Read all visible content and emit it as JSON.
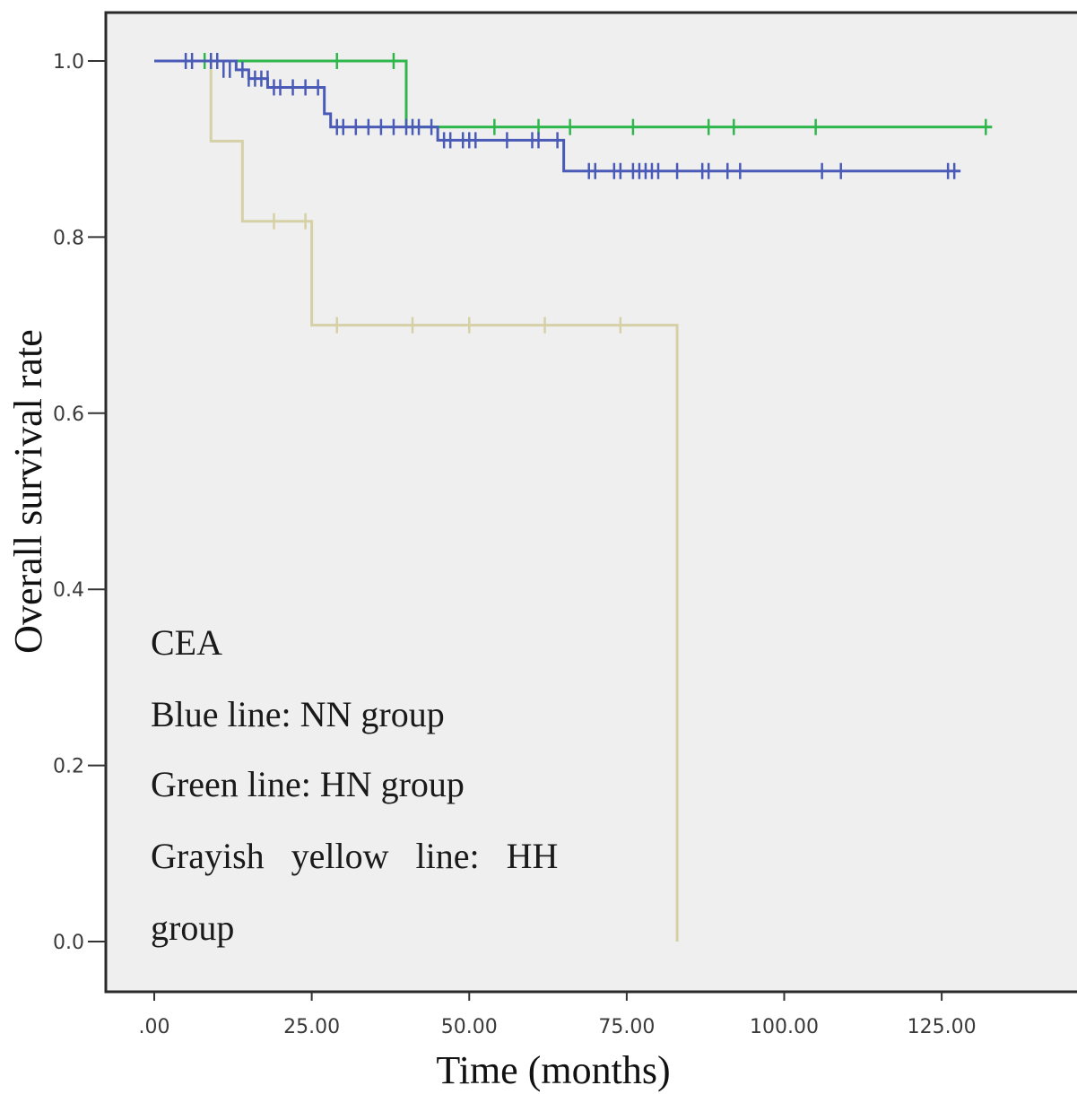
{
  "chart_data": {
    "type": "line",
    "subtype": "kaplan-meier step",
    "xlabel": "Time (months)",
    "ylabel": "Overall survival rate",
    "xlim": [
      0,
      132
    ],
    "ylim": [
      0,
      1.0
    ],
    "x_ticks": [
      ".00",
      "25.00",
      "50.00",
      "75.00",
      "100.00",
      "125.00"
    ],
    "y_ticks": [
      "0.0",
      "0.2",
      "0.4",
      "0.6",
      "0.8",
      "1.0"
    ],
    "grid": false,
    "colors": {
      "plot_background": "#efefef",
      "blue": "#4a5bb7",
      "green": "#2fb64d",
      "yellow": "#d6d0a6"
    },
    "annotations": [
      "CEA",
      "Blue line: NN group",
      "Green line: HN group",
      "Grayish   yellow   line:   HH",
      "group"
    ],
    "series": [
      {
        "color_key": "blue",
        "steps": [
          [
            0,
            1.0
          ],
          [
            13,
            0.99
          ],
          [
            15,
            0.98
          ],
          [
            18,
            0.97
          ],
          [
            27,
            0.94
          ],
          [
            28,
            0.925
          ],
          [
            45,
            0.91
          ],
          [
            65,
            0.875
          ],
          [
            128,
            0.875
          ]
        ],
        "censored": [
          [
            5,
            1.0
          ],
          [
            6,
            1.0
          ],
          [
            9,
            1.0
          ],
          [
            10,
            1.0
          ],
          [
            11,
            0.99
          ],
          [
            12,
            0.99
          ],
          [
            14,
            0.99
          ],
          [
            15,
            0.98
          ],
          [
            16,
            0.98
          ],
          [
            17,
            0.98
          ],
          [
            18,
            0.98
          ],
          [
            19,
            0.97
          ],
          [
            20,
            0.97
          ],
          [
            22,
            0.97
          ],
          [
            24,
            0.97
          ],
          [
            26,
            0.97
          ],
          [
            29,
            0.925
          ],
          [
            30,
            0.925
          ],
          [
            32,
            0.925
          ],
          [
            34,
            0.925
          ],
          [
            36,
            0.925
          ],
          [
            38,
            0.925
          ],
          [
            40,
            0.925
          ],
          [
            41,
            0.925
          ],
          [
            42,
            0.925
          ],
          [
            44,
            0.925
          ],
          [
            46,
            0.91
          ],
          [
            47,
            0.91
          ],
          [
            49,
            0.91
          ],
          [
            50,
            0.91
          ],
          [
            51,
            0.91
          ],
          [
            56,
            0.91
          ],
          [
            60,
            0.91
          ],
          [
            61,
            0.91
          ],
          [
            64,
            0.91
          ],
          [
            69,
            0.875
          ],
          [
            70,
            0.875
          ],
          [
            73,
            0.875
          ],
          [
            74,
            0.875
          ],
          [
            76,
            0.875
          ],
          [
            77,
            0.875
          ],
          [
            78,
            0.875
          ],
          [
            79,
            0.875
          ],
          [
            80,
            0.875
          ],
          [
            83,
            0.875
          ],
          [
            87,
            0.875
          ],
          [
            88,
            0.875
          ],
          [
            91,
            0.875
          ],
          [
            93,
            0.875
          ],
          [
            106,
            0.875
          ],
          [
            109,
            0.875
          ],
          [
            126,
            0.875
          ],
          [
            127,
            0.875
          ]
        ]
      },
      {
        "color_key": "green",
        "steps": [
          [
            0,
            1.0
          ],
          [
            40,
            0.925
          ],
          [
            133,
            0.925
          ]
        ],
        "censored": [
          [
            8,
            1.0
          ],
          [
            29,
            1.0
          ],
          [
            38,
            1.0
          ],
          [
            54,
            0.925
          ],
          [
            61,
            0.925
          ],
          [
            66,
            0.925
          ],
          [
            76,
            0.925
          ],
          [
            88,
            0.925
          ],
          [
            92,
            0.925
          ],
          [
            105,
            0.925
          ],
          [
            132,
            0.925
          ]
        ]
      },
      {
        "color_key": "yellow",
        "steps": [
          [
            0,
            1.0
          ],
          [
            9,
            0.909
          ],
          [
            14,
            0.818
          ],
          [
            25,
            0.7
          ],
          [
            83,
            0.0
          ]
        ],
        "censored": [
          [
            9,
            1.0
          ],
          [
            19,
            0.818
          ],
          [
            24,
            0.818
          ],
          [
            29,
            0.7
          ],
          [
            41,
            0.7
          ],
          [
            50,
            0.7
          ],
          [
            62,
            0.7
          ],
          [
            74,
            0.7
          ]
        ]
      }
    ]
  }
}
